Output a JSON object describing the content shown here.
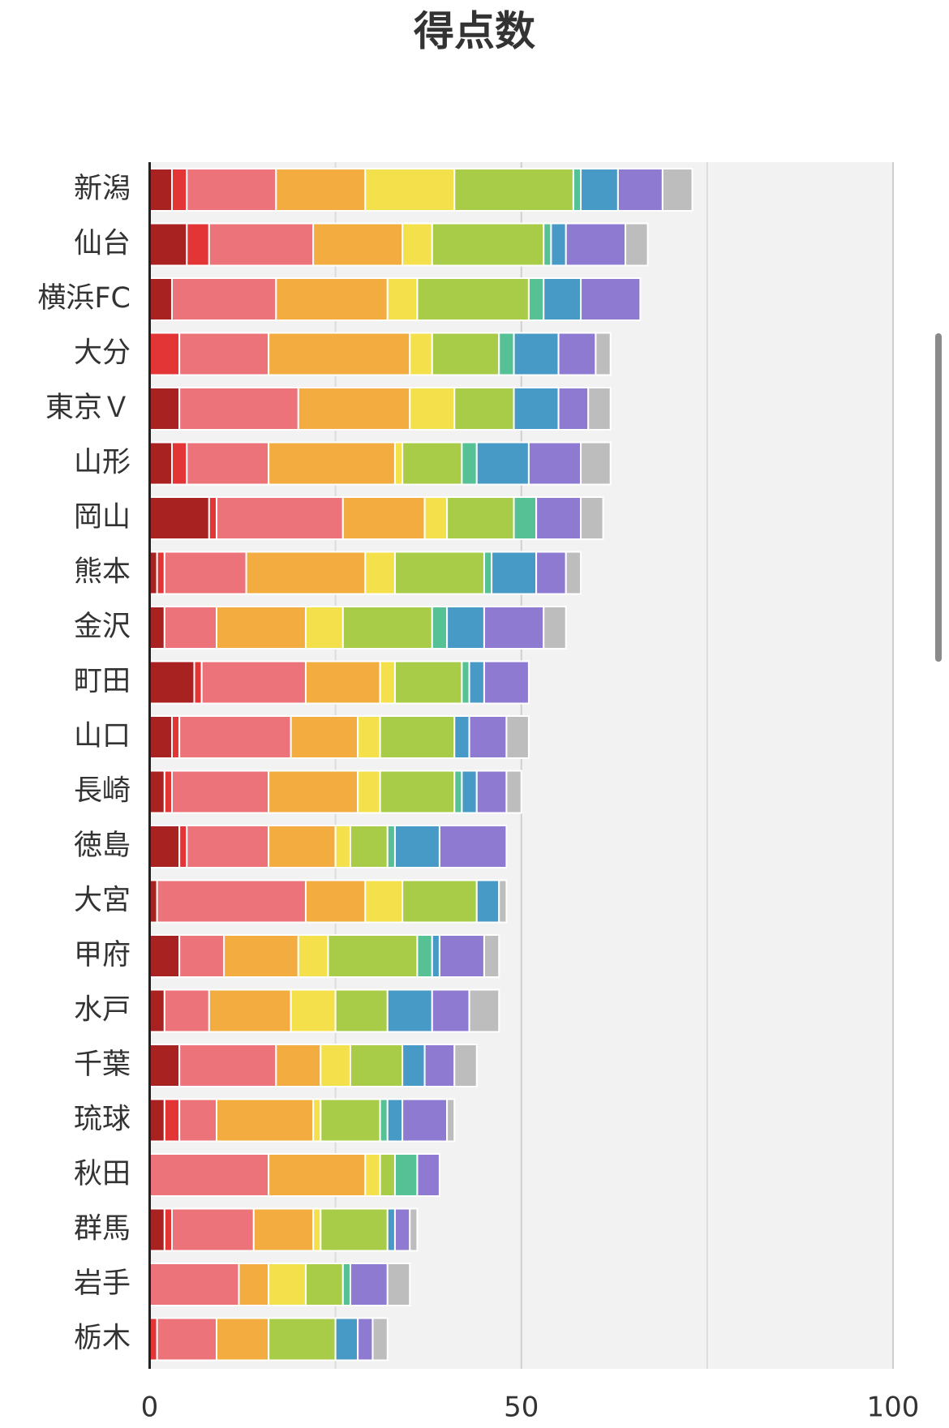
{
  "chart_data": {
    "type": "stacked_barh",
    "title": "得点数",
    "categories": [
      "新潟",
      "仙台",
      "横浜FC",
      "大分",
      "東京Ｖ",
      "山形",
      "岡山",
      "熊本",
      "金沢",
      "町田",
      "山口",
      "長崎",
      "徳島",
      "大宮",
      "甲府",
      "水戸",
      "千葉",
      "琉球",
      "秋田",
      "群馬",
      "岩手",
      "栃木"
    ],
    "series": [
      {
        "color": "#a82222",
        "values": [
          3,
          5,
          3,
          0,
          4,
          3,
          8,
          1,
          2,
          6,
          3,
          2,
          4,
          1,
          4,
          2,
          4,
          2,
          0,
          2,
          0,
          0
        ]
      },
      {
        "color": "#e33535",
        "values": [
          2,
          3,
          0,
          4,
          0,
          2,
          1,
          1,
          0,
          1,
          1,
          1,
          1,
          0,
          0,
          0,
          0,
          2,
          0,
          1,
          0,
          1
        ]
      },
      {
        "color": "#ec737a",
        "values": [
          12,
          14,
          14,
          12,
          16,
          11,
          17,
          11,
          7,
          14,
          15,
          13,
          11,
          20,
          6,
          6,
          13,
          5,
          16,
          11,
          12,
          8
        ]
      },
      {
        "color": "#f2ac40",
        "values": [
          12,
          12,
          15,
          19,
          15,
          17,
          11,
          16,
          12,
          10,
          9,
          12,
          9,
          8,
          10,
          11,
          6,
          13,
          13,
          8,
          4,
          7
        ]
      },
      {
        "color": "#f3e04b",
        "values": [
          12,
          4,
          4,
          3,
          6,
          1,
          3,
          4,
          5,
          2,
          3,
          3,
          2,
          5,
          4,
          6,
          4,
          1,
          2,
          1,
          5,
          0
        ]
      },
      {
        "color": "#a8cc48",
        "values": [
          16,
          15,
          15,
          9,
          8,
          8,
          9,
          12,
          12,
          9,
          10,
          10,
          5,
          10,
          12,
          7,
          7,
          8,
          2,
          9,
          5,
          9
        ]
      },
      {
        "color": "#55c194",
        "values": [
          1,
          1,
          2,
          2,
          0,
          2,
          3,
          1,
          2,
          1,
          0,
          1,
          1,
          0,
          2,
          0,
          0,
          1,
          3,
          0,
          1,
          0
        ]
      },
      {
        "color": "#4799c6",
        "values": [
          5,
          2,
          5,
          6,
          6,
          7,
          0,
          6,
          5,
          2,
          2,
          2,
          6,
          3,
          1,
          6,
          3,
          2,
          0,
          1,
          0,
          3
        ]
      },
      {
        "color": "#8e7bd1",
        "values": [
          6,
          8,
          8,
          5,
          4,
          7,
          6,
          4,
          8,
          6,
          5,
          4,
          9,
          0,
          6,
          5,
          4,
          6,
          3,
          2,
          5,
          2
        ]
      },
      {
        "color": "#bdbdbd",
        "values": [
          4,
          3,
          0,
          2,
          3,
          4,
          3,
          2,
          3,
          0,
          3,
          2,
          0,
          1,
          2,
          4,
          3,
          1,
          0,
          1,
          3,
          2
        ]
      }
    ],
    "xlim": [
      0,
      100
    ],
    "xticks": [
      0,
      50,
      100
    ],
    "minor_xticks": [
      25,
      75
    ],
    "grid": true
  }
}
